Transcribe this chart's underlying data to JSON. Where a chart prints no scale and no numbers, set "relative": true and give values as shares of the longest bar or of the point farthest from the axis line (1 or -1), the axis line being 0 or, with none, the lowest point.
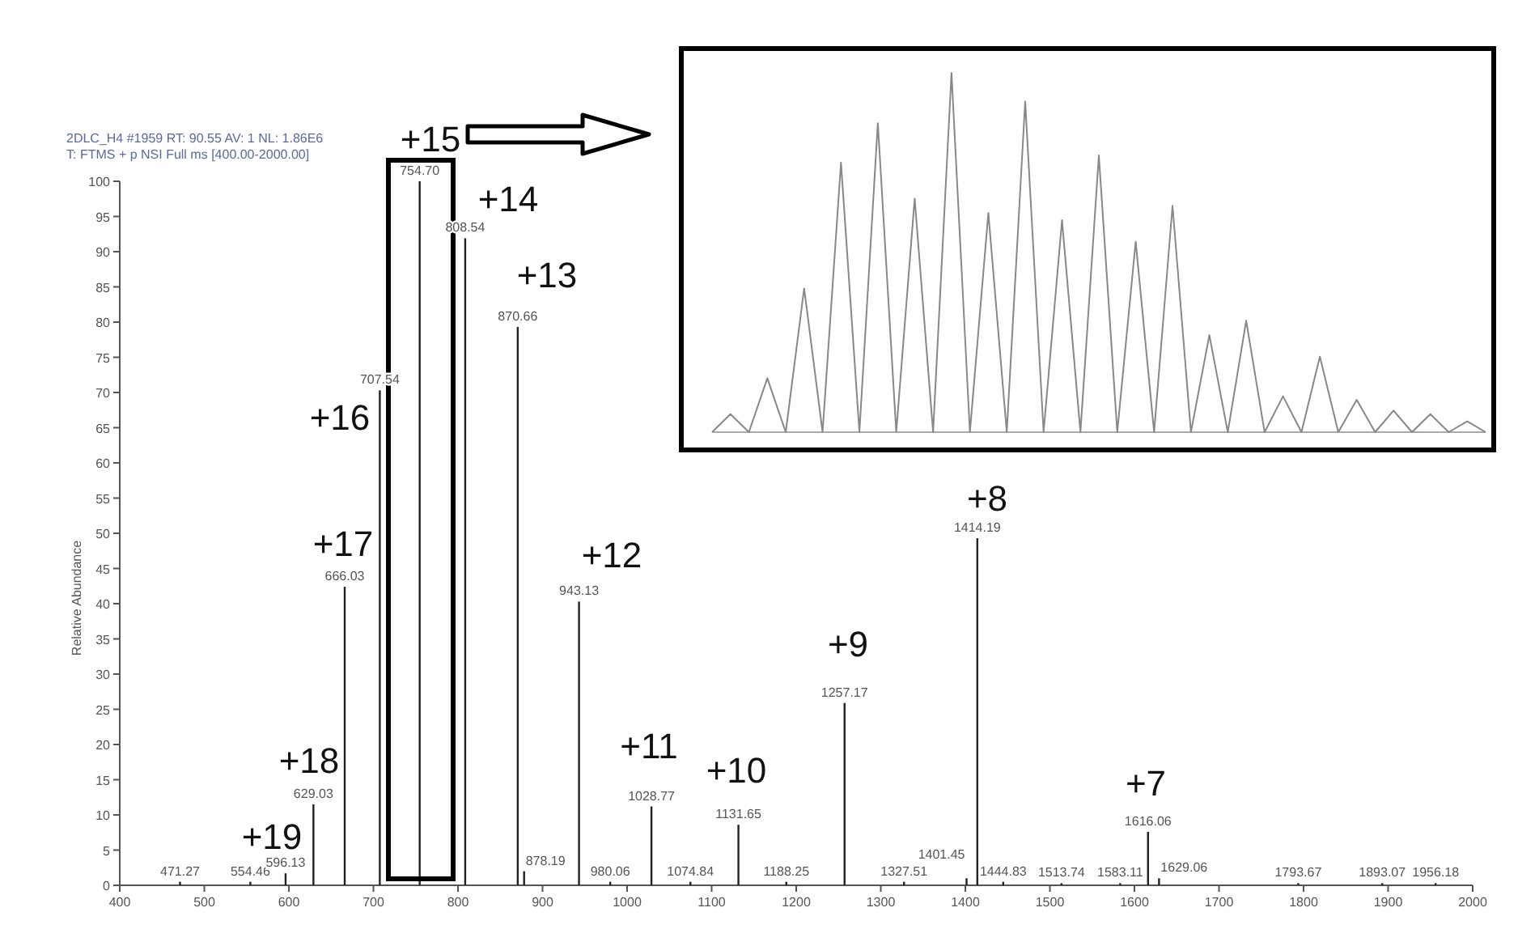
{
  "chart_data": [
    {
      "type": "bar",
      "title": "2DLC_H4 #1959  RT: 90.55  AV: 1  NL: 1.86E6",
      "subtitle": "T: FTMS + p NSI Full ms [400.00-2000.00]",
      "ylabel": "Relative Abundance",
      "color": "#222222",
      "x": [
        471.27,
        554.46,
        596.13,
        629.03,
        666.03,
        707.54,
        754.7,
        808.54,
        870.66,
        878.19,
        943.13,
        980.06,
        1028.77,
        1074.84,
        1131.65,
        1188.25,
        1257.17,
        1327.51,
        1401.45,
        1414.19,
        1444.83,
        1513.74,
        1583.11,
        1616.06,
        1629.06,
        1793.67,
        1893.07,
        1956.18
      ],
      "values": [
        0.5,
        0.5,
        1.7,
        11.5,
        42.4,
        70.3,
        100,
        91.9,
        79.3,
        2,
        40.3,
        0.5,
        11.2,
        0.5,
        8.6,
        0.5,
        25.9,
        0.5,
        1,
        49.3,
        0.5,
        0.3,
        0.3,
        7.6,
        1,
        0.3,
        0.3,
        0.3
      ],
      "xlim": [
        400,
        2000
      ],
      "ylim": [
        0,
        100
      ],
      "xticks": [
        400,
        500,
        600,
        700,
        800,
        900,
        1000,
        1100,
        1200,
        1300,
        1400,
        1500,
        1600,
        1700,
        1800,
        1900,
        2000
      ],
      "yticks": [
        0,
        5,
        10,
        15,
        20,
        25,
        30,
        35,
        40,
        45,
        50,
        55,
        60,
        65,
        70,
        75,
        80,
        85,
        90,
        95,
        100
      ],
      "annotations": [
        "+19",
        "+18",
        "+17",
        "+16",
        "+15",
        "+14",
        "+13",
        "+12",
        "+11",
        "+10",
        "+9",
        "+8",
        "+7",
        {
          "text": "471.27",
          "x": 471.27,
          "y": 0.5
        },
        {
          "text": "554.46",
          "x": 554.46,
          "y": 0.5
        },
        {
          "text": "596.13",
          "x": 596.13,
          "y": 1.7
        },
        {
          "text": "629.03",
          "x": 629.03,
          "y": 11.5
        },
        {
          "text": "666.03",
          "x": 666.03,
          "y": 42.4
        },
        {
          "text": "707.54",
          "x": 707.54,
          "y": 70.3
        },
        {
          "text": "754.70",
          "x": 754.7,
          "y": 100
        },
        {
          "text": "808.54",
          "x": 808.54,
          "y": 91.9
        },
        {
          "text": "870.66",
          "x": 870.66,
          "y": 79.3
        },
        {
          "text": "878.19",
          "x": 878.19,
          "y": 2
        },
        {
          "text": "943.13",
          "x": 943.13,
          "y": 40.3
        },
        {
          "text": "980.06",
          "x": 980.06,
          "y": 0.5
        },
        {
          "text": "1028.77",
          "x": 1028.77,
          "y": 11.2
        },
        {
          "text": "1074.84",
          "x": 1074.84,
          "y": 0.5
        },
        {
          "text": "1131.65",
          "x": 1131.65,
          "y": 8.6
        },
        {
          "text": "1188.25",
          "x": 1188.25,
          "y": 0.5
        },
        {
          "text": "1257.17",
          "x": 1257.17,
          "y": 25.9
        },
        {
          "text": "1327.51",
          "x": 1327.51,
          "y": 0.5
        },
        {
          "text": "1401.45",
          "x": 1401.45,
          "y": 1
        },
        {
          "text": "1414.19",
          "x": 1414.19,
          "y": 49.3
        },
        {
          "text": "1444.83",
          "x": 1444.83,
          "y": 0.5
        },
        {
          "text": "1513.74",
          "x": 1513.74,
          "y": 0.3
        },
        {
          "text": "1583.11",
          "x": 1583.11,
          "y": 0.3
        },
        {
          "text": "1616.06",
          "x": 1616.06,
          "y": 7.6
        },
        {
          "text": "1629.06",
          "x": 1629.06,
          "y": 1
        },
        {
          "text": "1793.67",
          "x": 1793.67,
          "y": 0.3
        },
        {
          "text": "1893.07",
          "x": 1893.07,
          "y": 0.3
        },
        {
          "text": "1956.18",
          "x": 1956.18,
          "y": 0.3
        }
      ]
    },
    {
      "type": "line",
      "relative": true,
      "color": "#888888",
      "categories": [
        null,
        null,
        null,
        null,
        null,
        null,
        null,
        null,
        null,
        null,
        null,
        null,
        null,
        null,
        null,
        null,
        null,
        null,
        null,
        null,
        null,
        null,
        null,
        null,
        null,
        null,
        null,
        null,
        null,
        null,
        null,
        null,
        null,
        null,
        null,
        null,
        null,
        null,
        null,
        null,
        null,
        null,
        null
      ],
      "values": [
        0,
        0.05,
        0,
        0.15,
        0,
        0.4,
        0,
        0.75,
        0,
        0.86,
        0,
        0.65,
        0,
        1,
        0,
        0.61,
        0,
        0.92,
        0,
        0.59,
        0,
        0.77,
        0,
        0.53,
        0,
        0.63,
        0,
        0.27,
        0,
        0.31,
        0,
        0.1,
        0,
        0.21,
        0,
        0.09,
        0,
        0.06,
        0,
        0.05,
        0,
        0.03,
        0
      ]
    }
  ]
}
